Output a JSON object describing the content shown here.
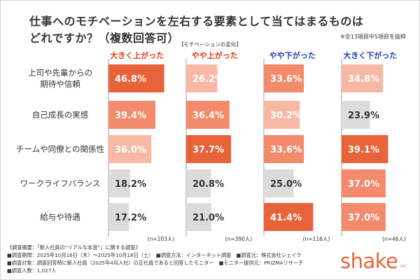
{
  "title_line1": "仕事へのモチベーションを左右する要素として当てはまるものは",
  "title_line2": "どれですか？（複数回答可）",
  "note": "※全13項目中5項目を抜粋",
  "legend_title": "【モチベーションの変化】",
  "colors": {
    "up_text": "#e03a17",
    "down_text": "#1f3fb8",
    "highlight": "#e8623a",
    "mid": "#f28a6b",
    "light": "#f8b9a4",
    "gray": "#dcdcdc"
  },
  "chart_data": {
    "type": "bar",
    "categories": [
      "上司や先輩からの期待や信頼",
      "自己成長の実感",
      "チームや同僚との関係性",
      "ワークライフバランス",
      "給与や待遇"
    ],
    "category_lines": [
      [
        "上司や先輩からの",
        "期待や信頼"
      ],
      [
        "自己成長の実感"
      ],
      [
        "チームや同僚との関係性"
      ],
      [
        "ワークライフバランス"
      ],
      [
        "給与や待遇"
      ]
    ],
    "series": [
      {
        "name": "大きく上がった",
        "values": [
          46.8,
          39.4,
          36.0,
          18.2,
          17.2
        ],
        "labels": [
          "46.8%",
          "39.4%",
          "36.0%",
          "18.2%",
          "17.2%"
        ],
        "n": "(n=203人)",
        "tones": [
          "highlight",
          "mid",
          "light",
          "gray",
          "gray"
        ]
      },
      {
        "name": "やや上がった",
        "values": [
          26.2,
          36.4,
          37.7,
          20.8,
          21.0
        ],
        "labels": [
          "26.2%",
          "36.4%",
          "37.7%",
          "20.8%",
          "21.0%"
        ],
        "n": "(n=390人)",
        "tones": [
          "light",
          "mid",
          "highlight",
          "gray",
          "gray"
        ]
      },
      {
        "name": "やや下がった",
        "values": [
          33.6,
          30.2,
          33.6,
          25.0,
          41.4
        ],
        "labels": [
          "33.6%",
          "30.2%",
          "33.6%",
          "25.0%",
          "41.4%"
        ],
        "n": "(n=116人)",
        "tones": [
          "mid",
          "light",
          "mid",
          "gray",
          "highlight"
        ]
      },
      {
        "name": "大きく下がった",
        "values": [
          34.8,
          23.9,
          39.1,
          37.0,
          37.0
        ],
        "labels": [
          "34.8%",
          "23.9%",
          "39.1%",
          "37.0%",
          "37.0%"
        ],
        "n": "(n=46人)",
        "tones": [
          "light",
          "gray",
          "highlight",
          "mid",
          "mid"
        ]
      }
    ],
    "xlim": [
      0,
      50
    ],
    "grid": false,
    "legend": "top"
  },
  "footer": {
    "line1": "《調査概要：「新入社員の“リアルな本音”」に関する調査》",
    "line2": "■調査期間：2025年10月16日（木）～2025年10月18日（土）　■調査方法：インターネット調査　■調査元：株式会社シェイク",
    "line3": "■調査対象：調査回答時に新入社員（2025年4月入社）の正社員であると回答したモニター　■モニター提供元：PRIZMAリサーチ",
    "line4": "■調査人数：1,027人"
  },
  "logo": {
    "text": "shake",
    "suffix": "inc."
  }
}
